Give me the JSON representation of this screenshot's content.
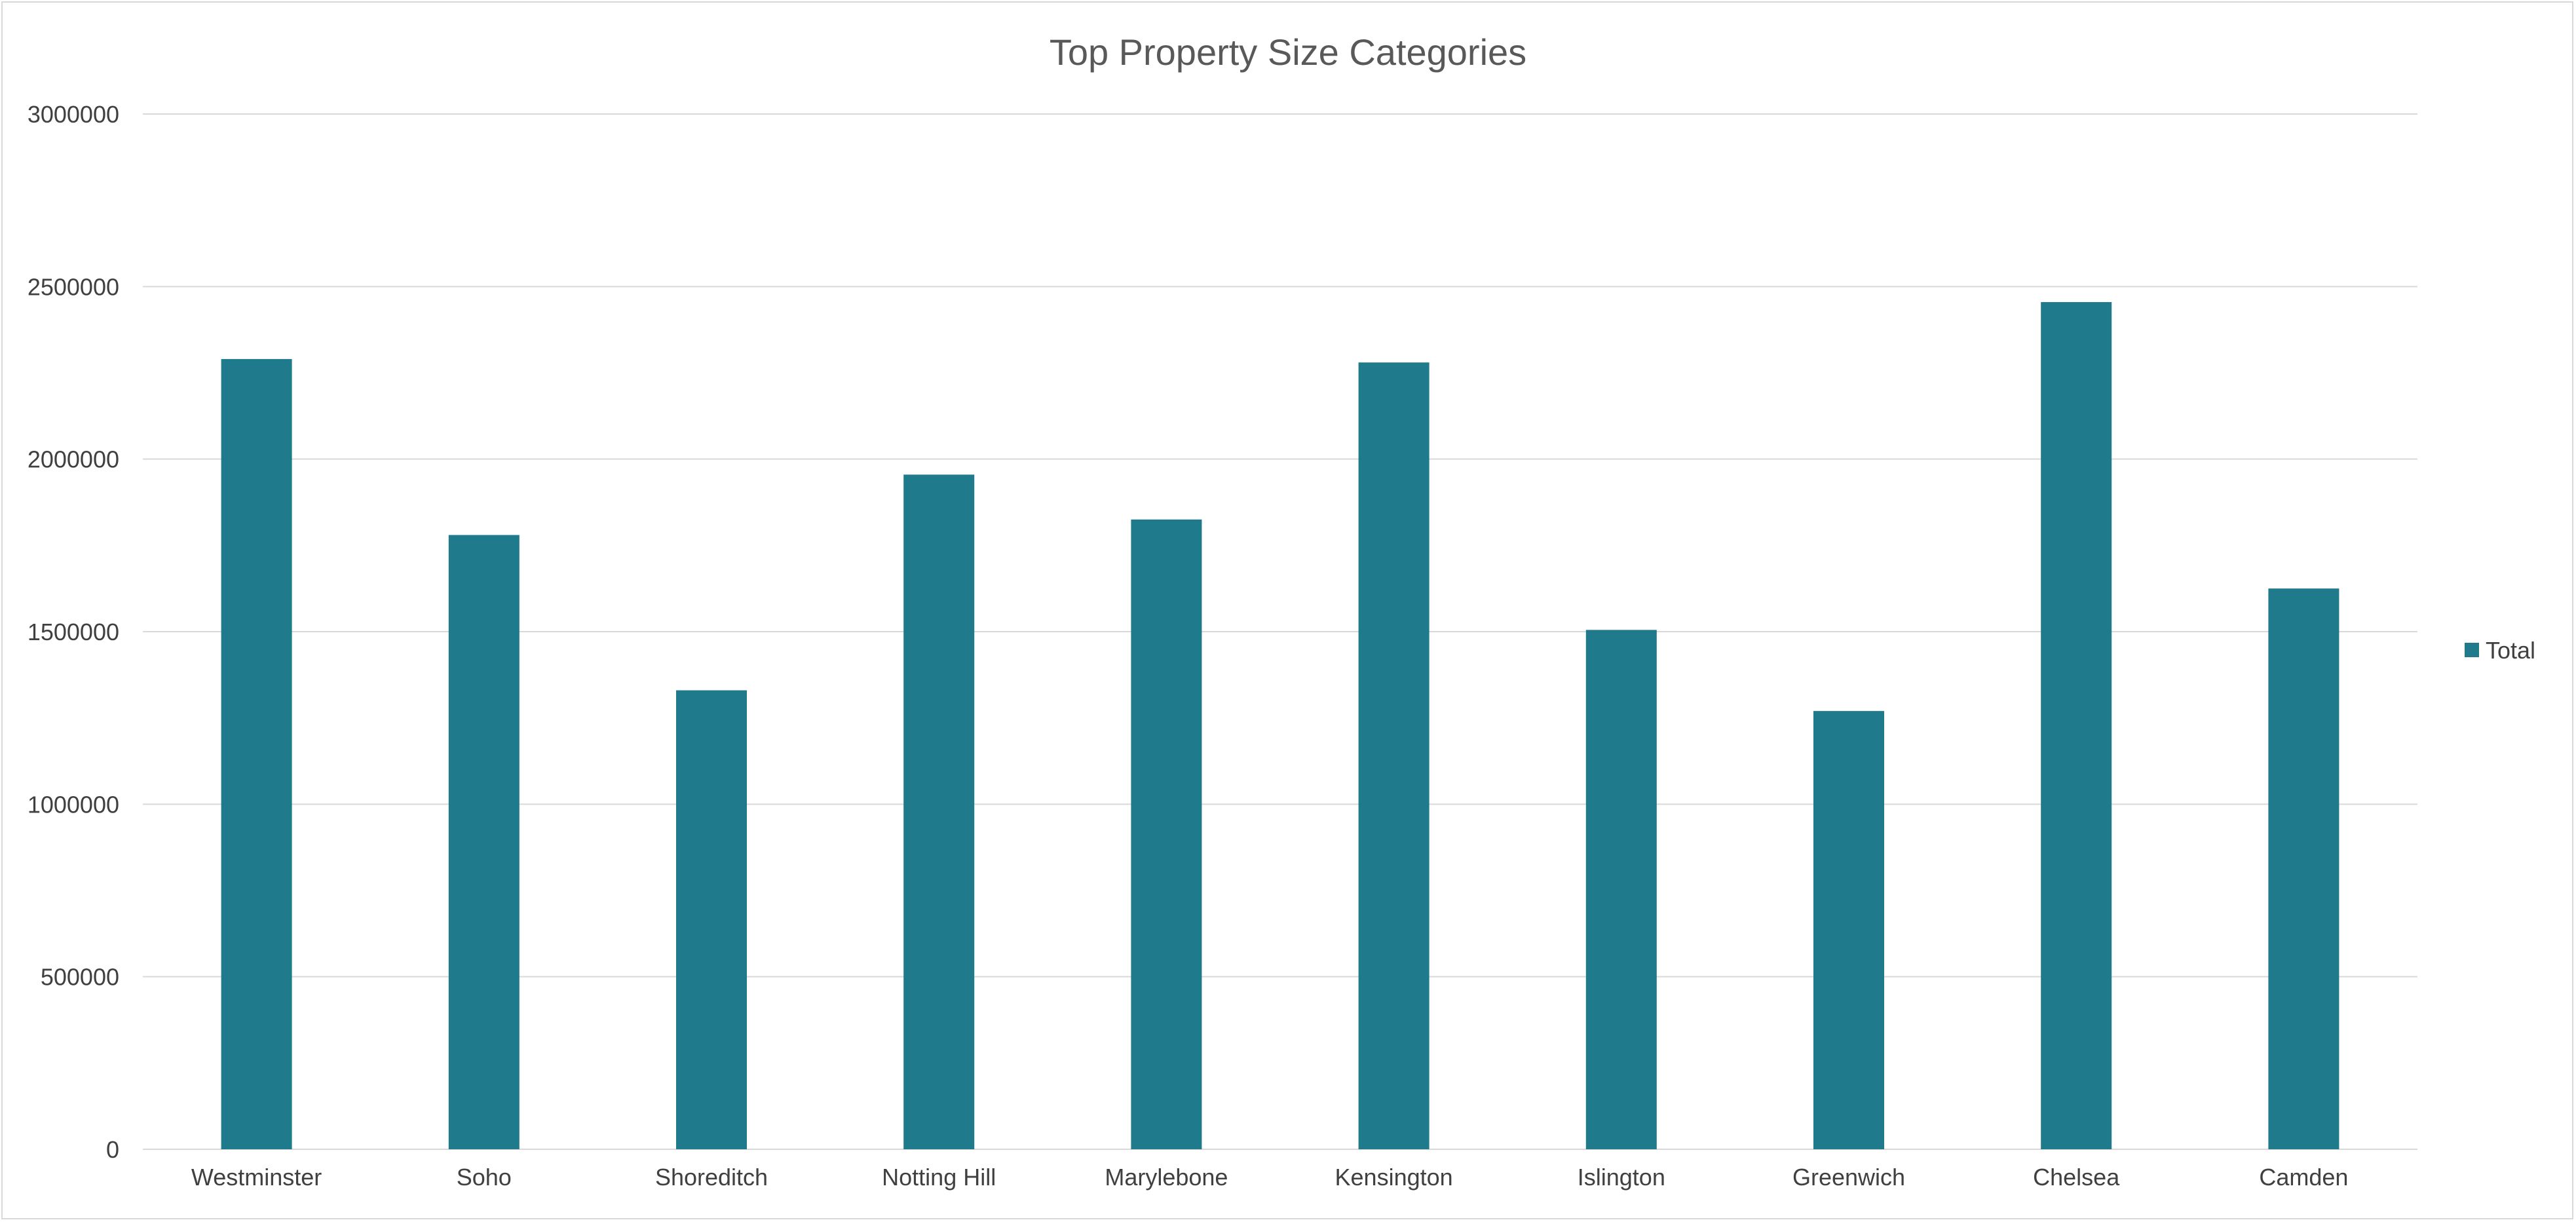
{
  "chart_data": {
    "type": "bar",
    "title": "Top Property Size Categories",
    "xlabel": "",
    "ylabel": "",
    "categories": [
      "Westminster",
      "Soho",
      "Shoreditch",
      "Notting Hill",
      "Marylebone",
      "Kensington",
      "Islington",
      "Greenwich",
      "Chelsea",
      "Camden"
    ],
    "series": [
      {
        "name": "Total",
        "color": "#1F7A8C",
        "values": [
          2290000,
          1780000,
          1330000,
          1955000,
          1825000,
          2280000,
          1505000,
          1270000,
          2455000,
          1625000
        ]
      }
    ],
    "ylim": [
      0,
      3000000
    ],
    "yticks": [
      "0",
      "500000",
      "1000000",
      "1500000",
      "2000000",
      "2500000",
      "3000000"
    ],
    "grid": true,
    "legend_position": "right"
  }
}
